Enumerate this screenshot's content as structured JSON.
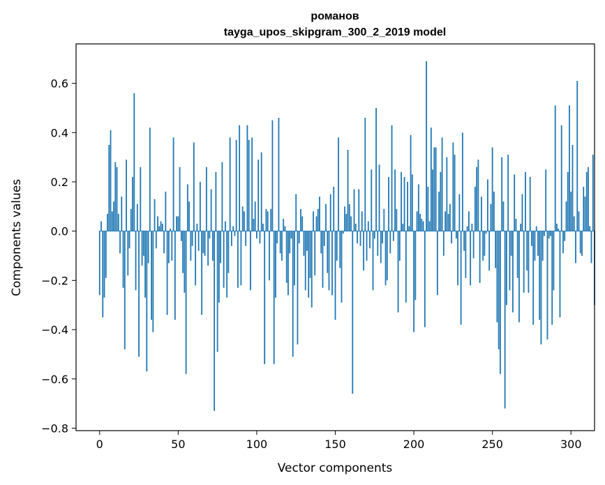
{
  "chart_data": {
    "type": "bar",
    "title": "романов",
    "subtitle": "tayga_upos_skipgram_300_2_2019 model",
    "xlabel": "Vector components",
    "ylabel": "Components values",
    "xlim": [
      -15,
      315
    ],
    "ylim": [
      -0.81,
      0.76
    ],
    "xticks": [
      0,
      50,
      100,
      150,
      200,
      250,
      300
    ],
    "xtick_labels": [
      "0",
      "50",
      "100",
      "150",
      "200",
      "250",
      "300"
    ],
    "yticks": [
      -0.8,
      -0.6,
      -0.4,
      -0.2,
      0.0,
      0.2,
      0.4,
      0.6
    ],
    "ytick_labels": [
      "−0.8",
      "−0.6",
      "−0.4",
      "−0.2",
      "0.0",
      "0.2",
      "0.4",
      "0.6"
    ],
    "grid": false,
    "bar_color": "#1f77b4",
    "x_start": 0,
    "values": [
      -0.26,
      0.04,
      -0.35,
      -0.27,
      -0.19,
      0.07,
      0.35,
      0.41,
      0.08,
      0.12,
      0.28,
      0.26,
      0.07,
      -0.09,
      0.14,
      -0.23,
      -0.48,
      0.29,
      -0.18,
      -0.07,
      0.09,
      0.22,
      0.56,
      -0.24,
      0.11,
      -0.51,
      0.26,
      -0.14,
      -0.1,
      -0.27,
      -0.57,
      -0.13,
      0.42,
      -0.36,
      -0.41,
      0.13,
      -0.07,
      0.06,
      0.02,
      0.04,
      0.03,
      -0.09,
      0.16,
      -0.34,
      -0.13,
      0.01,
      -0.12,
      0.38,
      -0.36,
      0.06,
      0.06,
      0.26,
      -0.04,
      -0.17,
      -0.25,
      -0.58,
      0.19,
      0.12,
      -0.12,
      -0.06,
      0.36,
      -0.22,
      0.03,
      -0.08,
      0.2,
      -0.34,
      -0.09,
      -0.1,
      0.26,
      -0.14,
      -0.03,
      0.17,
      -0.12,
      -0.73,
      0.24,
      -0.49,
      -0.29,
      -0.13,
      0.28,
      -0.23,
      0.04,
      -0.27,
      -0.17,
      0.38,
      -0.06,
      0.02,
      -0.02,
      0.37,
      -0.23,
      0.43,
      -0.22,
      0.1,
      0.08,
      -0.06,
      0.43,
      0.37,
      -0.24,
      0.38,
      0.05,
      0.12,
      -0.03,
      0.29,
      -0.05,
      0.32,
      0.03,
      -0.54,
      0.09,
      0.08,
      -0.2,
      0.09,
      0.45,
      -0.54,
      -0.27,
      -0.05,
      0.46,
      -0.09,
      -0.12,
      0.05,
      0.02,
      -0.21,
      -0.26,
      -0.09,
      -0.03,
      -0.51,
      -0.22,
      0.15,
      -0.46,
      -0.05,
      0.09,
      0.06,
      -0.1,
      -0.24,
      -0.08,
      -0.27,
      -0.19,
      -0.31,
      0.08,
      -0.18,
      0.06,
      0.09,
      0.14,
      -0.09,
      -0.23,
      -0.06,
      0.11,
      -0.17,
      -0.24,
      0.15,
      -0.26,
      0.18,
      -0.36,
      -0.12,
      0.38,
      -0.15,
      -0.29,
      -0.01,
      0.1,
      0.07,
      0.33,
      0.11,
      0.06,
      -0.66,
      0.17,
      0.03,
      -0.05,
      0.17,
      -0.06,
      0.08,
      -0.16,
      0.46,
      -0.12,
      0.04,
      -0.07,
      0.25,
      -0.24,
      -0.03,
      0.5,
      -0.1,
      0.27,
      -0.13,
      -0.05,
      0.09,
      -0.22,
      -0.2,
      0.22,
      -0.09,
      0.43,
      -0.04,
      0.25,
      0.09,
      -0.33,
      -0.12,
      0.24,
      0.03,
      0.22,
      -0.29,
      0.2,
      0.02,
      0.39,
      0.23,
      -0.41,
      -0.28,
      0.08,
      0.19,
      0.07,
      0.05,
      0.04,
      -0.39,
      0.69,
      0.18,
      0.04,
      0.42,
      0.25,
      0.34,
      0.34,
      -0.26,
      0.16,
      0.24,
      0.38,
      -0.1,
      0.08,
      0.3,
      0.07,
      0.11,
      -0.05,
      0.36,
      0.31,
      -0.03,
      -0.22,
      0.15,
      -0.38,
      0.4,
      -0.08,
      -0.19,
      0.02,
      0.08,
      -0.22,
      0.03,
      -0.11,
      0.18,
      0.26,
      0.29,
      -0.21,
      0.14,
      -0.12,
      -0.1,
      -0.01,
      0.21,
      -0.16,
      0.11,
      0.34,
      0.16,
      -0.15,
      -0.37,
      -0.48,
      -0.58,
      0.3,
      0.12,
      -0.72,
      -0.3,
      0.31,
      -0.24,
      -0.1,
      -0.33,
      0.23,
      0.05,
      -0.19,
      -0.37,
      0.03,
      0.15,
      -0.25,
      0.24,
      -0.16,
      -0.25,
      0.22,
      -0.06,
      -0.38,
      -0.12,
      0.02,
      -0.1,
      -0.36,
      -0.46,
      -0.12,
      -0.02,
      0.25,
      -0.44,
      -0.03,
      -0.02,
      -0.38,
      -0.24,
      0.51,
      0.03,
      0.01,
      -0.35,
      0.43,
      -0.09,
      -0.04,
      0.12,
      0.24,
      0.51,
      0.16,
      0.35,
      0.06,
      -0.13,
      0.61,
      0.08,
      -0.09,
      -0.1,
      0.18,
      0.14,
      0.24,
      0.26,
      0.02,
      -0.13,
      0.31,
      -0.3
    ]
  }
}
